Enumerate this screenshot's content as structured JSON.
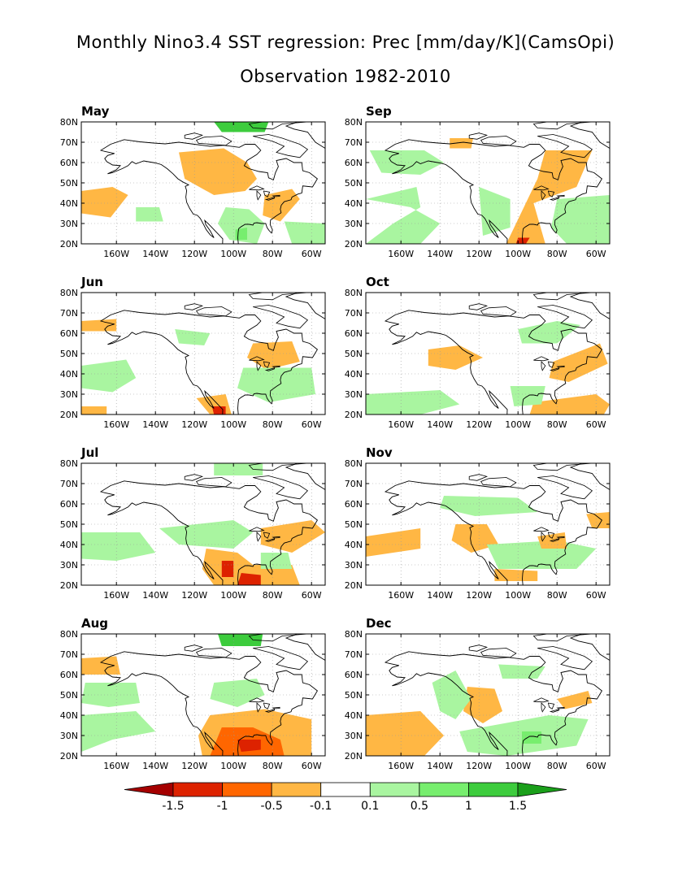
{
  "figure": {
    "title": "Monthly Nino3.4 SST regression: Prec [mm/day/K](CamsOpi)",
    "subtitle": "Observation 1982-2010"
  },
  "axes": {
    "lat_labels": [
      "20N",
      "30N",
      "40N",
      "50N",
      "60N",
      "70N",
      "80N"
    ],
    "lon_labels": [
      "160W",
      "140W",
      "120W",
      "100W",
      "80W",
      "60W"
    ]
  },
  "panels": [
    {
      "name": "May",
      "column": "left",
      "row": 0
    },
    {
      "name": "Sep",
      "column": "right",
      "row": 0
    },
    {
      "name": "Jun",
      "column": "left",
      "row": 1
    },
    {
      "name": "Oct",
      "column": "right",
      "row": 1
    },
    {
      "name": "Jul",
      "column": "left",
      "row": 2
    },
    {
      "name": "Nov",
      "column": "right",
      "row": 2
    },
    {
      "name": "Aug",
      "column": "left",
      "row": 3
    },
    {
      "name": "Dec",
      "column": "right",
      "row": 3
    }
  ],
  "colorbar": {
    "colors": [
      "#a50000",
      "#dd2200",
      "#ff6600",
      "#ffb744",
      "#ffffff",
      "#a9f5a0",
      "#77ee6e",
      "#3dcc3d",
      "#1a9f1a"
    ],
    "labels": [
      "-1.5",
      "-1",
      "-0.5",
      "-0.1",
      "0.1",
      "0.5",
      "1",
      "1.5"
    ]
  },
  "map_colors": {
    "orange": "#ffb744",
    "dark_orange": "#ff6600",
    "red": "#dd2200",
    "light_green": "#a9f5a0",
    "green": "#77ee6e",
    "dark_green": "#3dcc3d"
  }
}
